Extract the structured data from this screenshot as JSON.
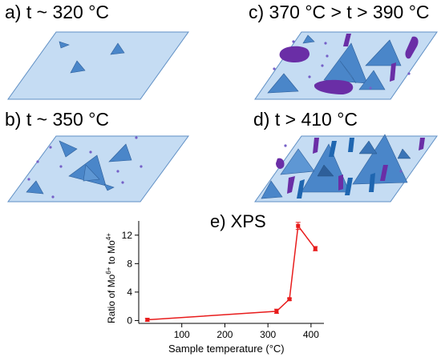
{
  "panels": {
    "a": {
      "title": "a) t ~ 320 °C"
    },
    "b": {
      "title": "b) t ~ 350 °C"
    },
    "c": {
      "title": "c) 370 °C > t > 390 °C"
    },
    "d": {
      "title": "d) t > 410 °C"
    }
  },
  "colors": {
    "substrate_fill": "#c5dcf3",
    "substrate_stroke": "#5f8fc4",
    "triangle_fill": "#4a86c9",
    "triangle_stroke": "#2e5f9a",
    "dot": "#7560c8",
    "oxide": "#6a2ea6",
    "oxide_blue": "#1f66b0",
    "line": "#e81c1c"
  },
  "chart": {
    "title": "e) XPS",
    "ylabel_prefix": "Ratio of Mo",
    "ylabel_sup1": "6+",
    "ylabel_mid": " to Mo",
    "ylabel_sup2": "4+",
    "xlabel": "Sample temperature (°C)"
  },
  "chart_data": {
    "type": "line",
    "title": "e) XPS",
    "xlabel": "Sample temperature (°C)",
    "ylabel": "Ratio of Mo6+ to Mo4+",
    "xlim": [
      0,
      430
    ],
    "ylim": [
      -0.4,
      14
    ],
    "xticks": [
      100,
      200,
      300,
      400
    ],
    "yticks": [
      0,
      4,
      8,
      12
    ],
    "grid": false,
    "series": [
      {
        "x": [
          20,
          320,
          350,
          370,
          410
        ],
        "y": [
          0.1,
          1.3,
          3.0,
          13.3,
          10.1
        ],
        "err": [
          0.2,
          0.3,
          0.15,
          0.5,
          0.3
        ]
      }
    ]
  }
}
